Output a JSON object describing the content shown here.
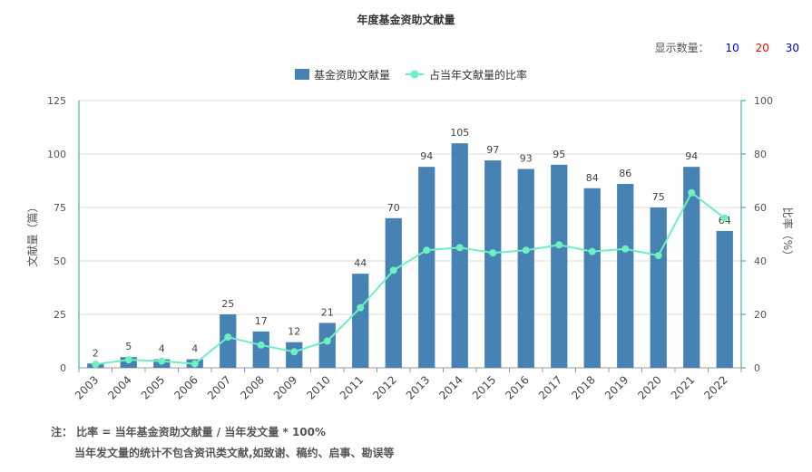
{
  "chart_data": {
    "type": "bar",
    "title": "年度基金资助文献量",
    "categories": [
      "2003",
      "2004",
      "2005",
      "2006",
      "2007",
      "2008",
      "2009",
      "2010",
      "2011",
      "2012",
      "2013",
      "2014",
      "2015",
      "2016",
      "2017",
      "2018",
      "2019",
      "2020",
      "2021",
      "2022"
    ],
    "series": [
      {
        "name": "基金资助文献量",
        "type": "bar",
        "axis": "left",
        "color": "#4682B4",
        "values": [
          2,
          5,
          4,
          4,
          25,
          17,
          12,
          21,
          44,
          70,
          94,
          105,
          97,
          93,
          95,
          84,
          86,
          75,
          94,
          64
        ]
      },
      {
        "name": "占当年文献量的比率",
        "type": "line",
        "axis": "right",
        "color": "#6EF0C0",
        "values": [
          1.3,
          3.0,
          2.5,
          1.5,
          11.5,
          8.5,
          6.0,
          10.0,
          22.5,
          36.5,
          44.0,
          45.0,
          43.0,
          44.0,
          46.0,
          43.5,
          44.5,
          42.0,
          65.5,
          56.0
        ]
      }
    ],
    "ylabel": "文献量（篇）",
    "ylabel_right": "比率（%）",
    "ylim": [
      0,
      125
    ],
    "ylim_right": [
      0,
      100
    ],
    "yticks": [
      0,
      25,
      50,
      75,
      100,
      125
    ],
    "yticks_right": [
      0,
      20,
      40,
      60,
      80,
      100
    ],
    "legend_position": "top-center",
    "grid": true
  },
  "count_selector": {
    "label": "显示数量：",
    "options": [
      {
        "label": "10",
        "color": "#0000ff"
      },
      {
        "label": "20",
        "color": "#ff0000"
      },
      {
        "label": "30",
        "color": "#0000aa"
      }
    ]
  },
  "notes": {
    "line1": "注：  比率 = 当年基金资助文献量 / 当年发文量 * 100%",
    "line2": "当年发文量的统计不包含资讯类文献,如致谢、稿约、启事、勘误等"
  }
}
